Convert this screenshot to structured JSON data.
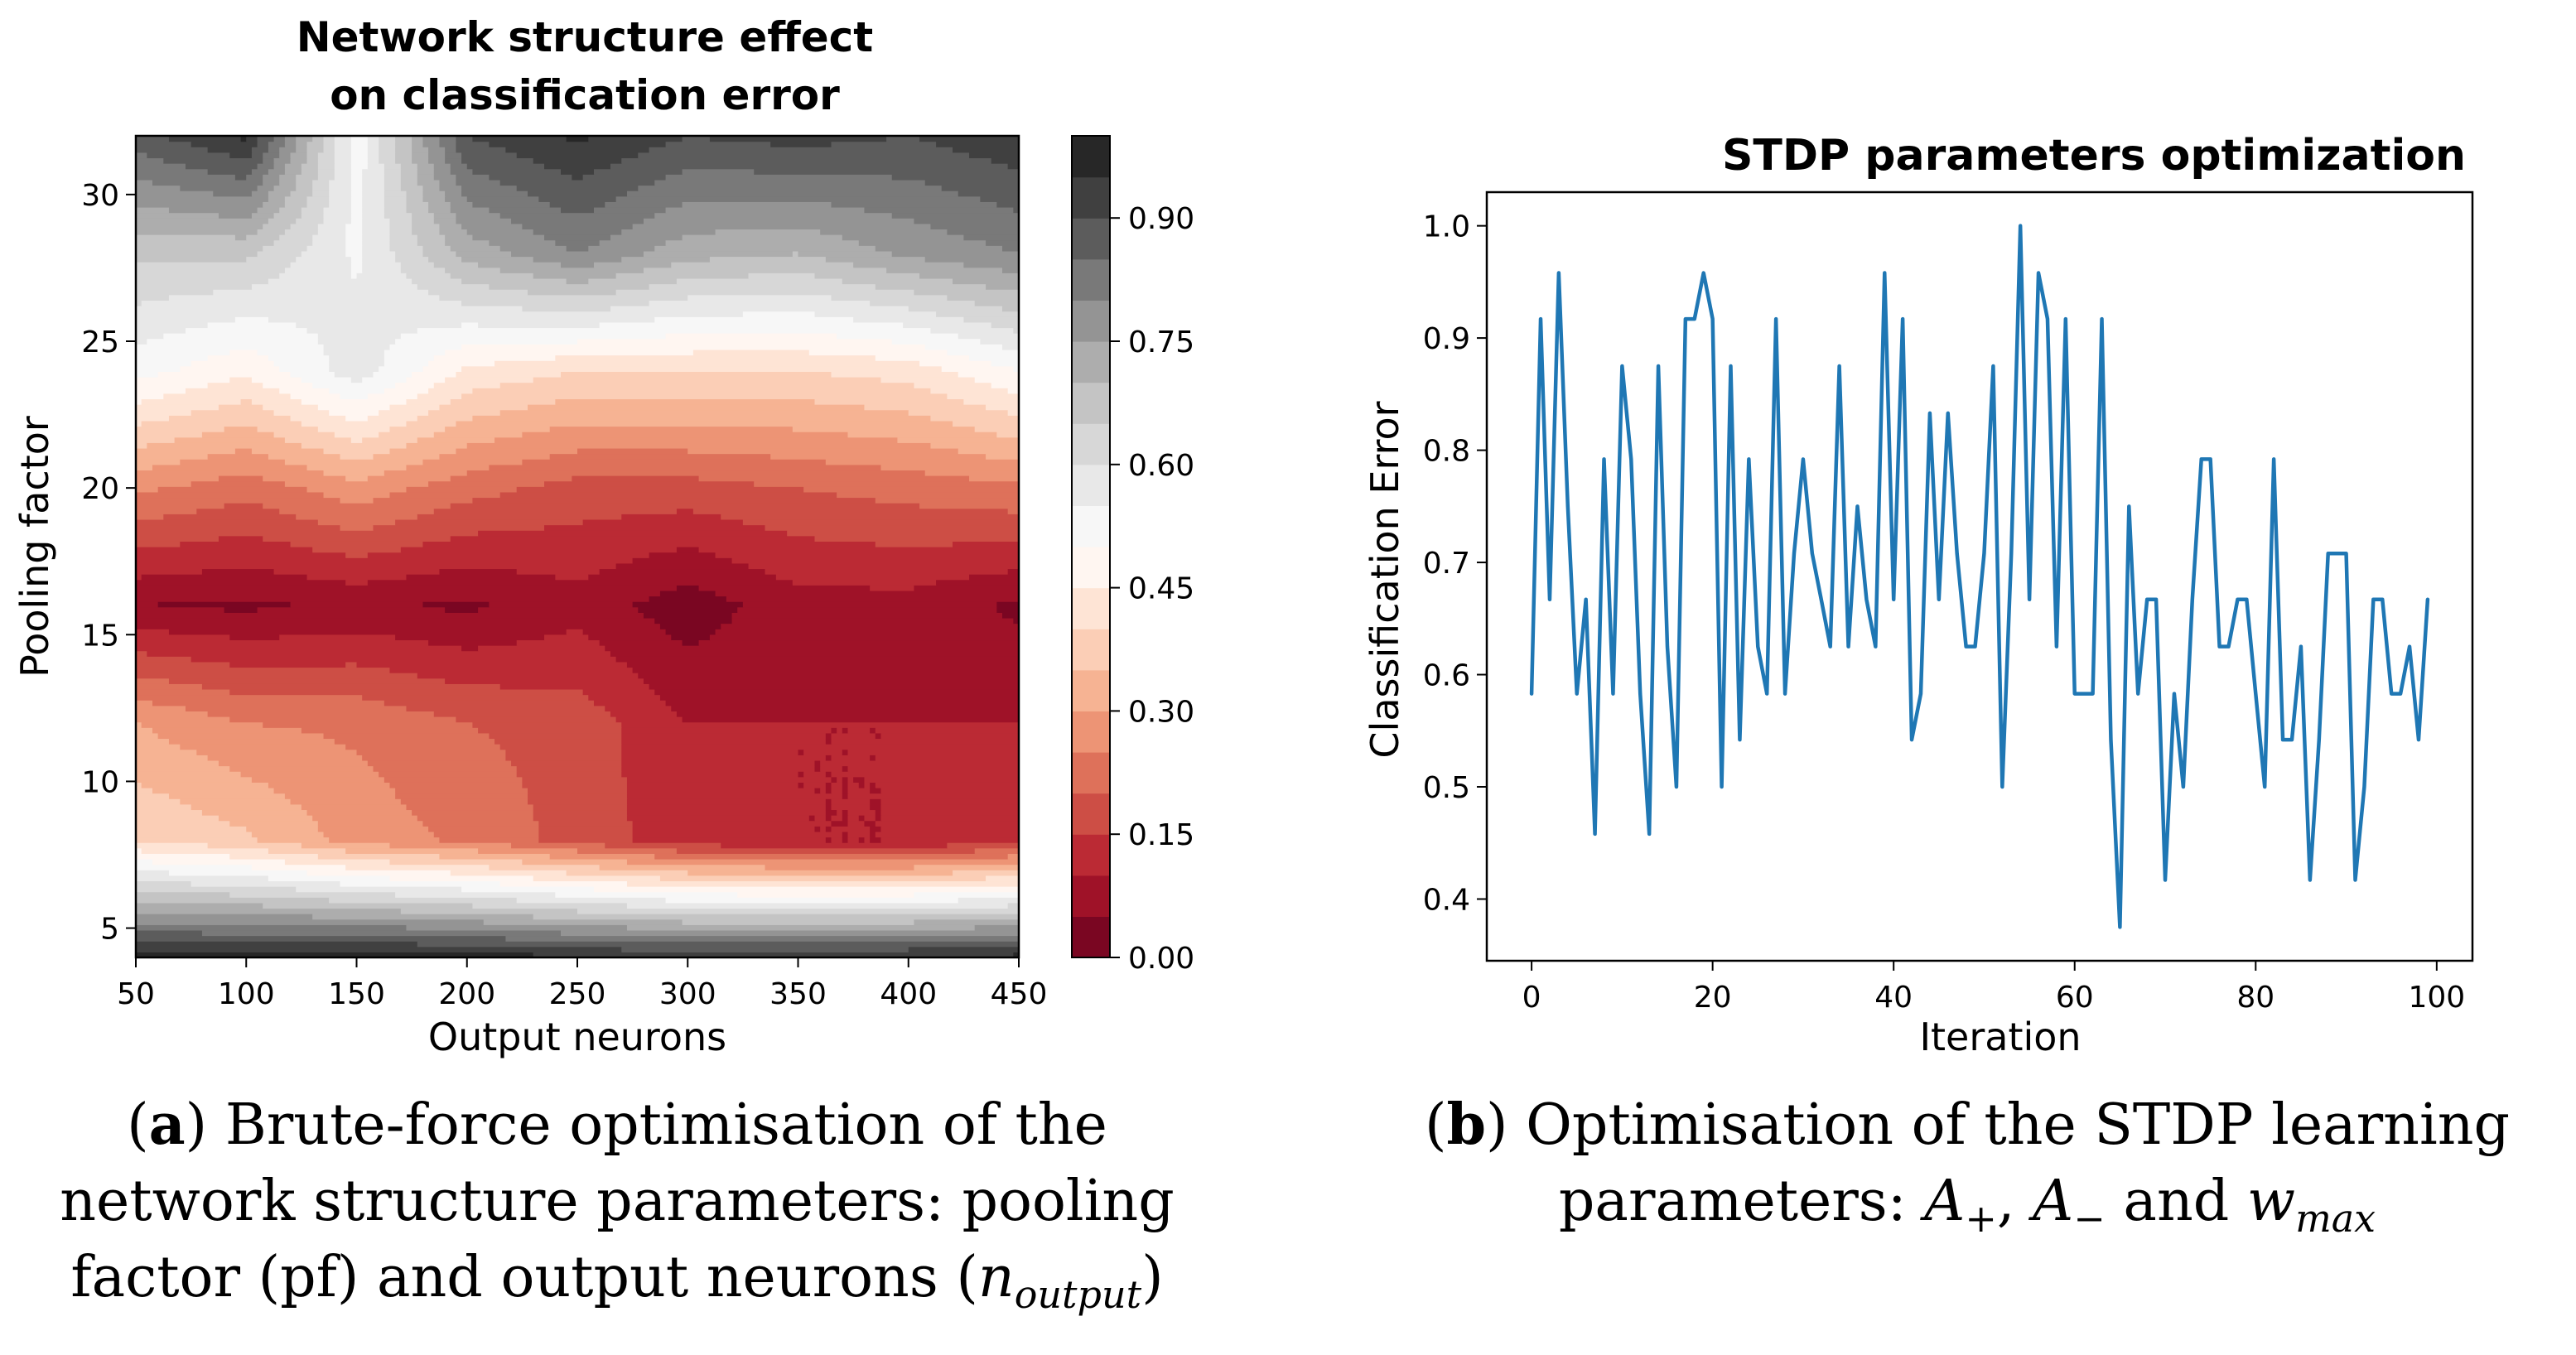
{
  "chart_data": [
    {
      "type": "heatmap",
      "style": "filled-contour",
      "title_line1": "Network structure effect",
      "title_line2": "on classification error",
      "xlabel": "Output neurons",
      "ylabel": "Pooling factor",
      "xlim": [
        50,
        450
      ],
      "ylim": [
        4,
        32
      ],
      "x": [
        50,
        100,
        150,
        200,
        250,
        300,
        350,
        400,
        450
      ],
      "y": [
        4,
        8,
        12,
        16,
        20,
        24,
        28,
        32
      ],
      "z": [
        [
          0.97,
          0.98,
          0.99,
          0.98,
          0.96,
          0.95,
          0.95,
          0.96,
          0.97
        ],
        [
          0.4,
          0.36,
          0.28,
          0.24,
          0.18,
          0.12,
          0.1,
          0.1,
          0.14
        ],
        [
          0.3,
          0.25,
          0.24,
          0.2,
          0.18,
          0.1,
          0.1,
          0.1,
          0.1
        ],
        [
          0.05,
          0.04,
          0.06,
          0.04,
          0.08,
          0.02,
          0.08,
          0.08,
          0.04
        ],
        [
          0.26,
          0.22,
          0.28,
          0.22,
          0.18,
          0.18,
          0.2,
          0.22,
          0.24
        ],
        [
          0.52,
          0.46,
          0.58,
          0.44,
          0.4,
          0.4,
          0.4,
          0.42,
          0.5
        ],
        [
          0.66,
          0.66,
          0.54,
          0.72,
          0.8,
          0.72,
          0.7,
          0.76,
          0.8
        ],
        [
          0.88,
          0.96,
          0.52,
          0.9,
          0.96,
          0.9,
          0.92,
          0.9,
          0.94
        ]
      ],
      "colorbar_levels": [
        0.0,
        0.05,
        0.1,
        0.15,
        0.2,
        0.25,
        0.3,
        0.35,
        0.4,
        0.45,
        0.5,
        0.55,
        0.6,
        0.65,
        0.7,
        0.75,
        0.8,
        0.85,
        0.9,
        0.95,
        1.0
      ],
      "colorbar_ticks": [
        0.0,
        0.15,
        0.3,
        0.45,
        0.6,
        0.75,
        0.9
      ],
      "colormap": "RdGy",
      "colormap_stops": [
        "#67001f",
        "#b2182b",
        "#d6604d",
        "#f4a582",
        "#fddbc7",
        "#ffffff",
        "#e0e0e0",
        "#bababa",
        "#878787",
        "#4d4d4d",
        "#1a1a1a"
      ],
      "caption_label": "a",
      "caption_line1": "Brute-force optimisation of the",
      "caption_line2": "network structure parameters: pooling",
      "caption_line3_text": "factor (pf) and output neurons (",
      "caption_line3_var": "n",
      "caption_line3_sub": "output",
      "caption_line3_end": ")"
    },
    {
      "type": "line",
      "title": "STDP parameters optimization",
      "xlabel": "Iteration",
      "ylabel": "Classification Error",
      "xlim": [
        -4.95,
        103.95
      ],
      "ylim": [
        0.345,
        1.03
      ],
      "xticks": [
        0,
        20,
        40,
        60,
        80,
        100
      ],
      "yticks": [
        0.4,
        0.5,
        0.6,
        0.7,
        0.8,
        0.9,
        1.0
      ],
      "line_color": "#1f77b4",
      "series": [
        {
          "name": "Classification Error",
          "x": [
            0,
            1,
            2,
            3,
            4,
            5,
            6,
            7,
            8,
            9,
            10,
            11,
            12,
            13,
            14,
            15,
            16,
            17,
            18,
            19,
            20,
            21,
            22,
            23,
            24,
            25,
            26,
            27,
            28,
            29,
            30,
            31,
            32,
            33,
            34,
            35,
            36,
            37,
            38,
            39,
            40,
            41,
            42,
            43,
            44,
            45,
            46,
            47,
            48,
            49,
            50,
            51,
            52,
            53,
            54,
            55,
            56,
            57,
            58,
            59,
            60,
            61,
            62,
            63,
            64,
            65,
            66,
            67,
            68,
            69,
            70,
            71,
            72,
            73,
            74,
            75,
            76,
            77,
            78,
            79,
            80,
            81,
            82,
            83,
            84,
            85,
            86,
            87,
            88,
            89,
            90,
            91,
            92,
            93,
            94,
            95,
            96,
            97,
            98,
            99
          ],
          "values": [
            0.583,
            0.917,
            0.667,
            0.958,
            0.75,
            0.583,
            0.667,
            0.458,
            0.792,
            0.583,
            0.875,
            0.792,
            0.583,
            0.458,
            0.875,
            0.625,
            0.5,
            0.917,
            0.917,
            0.958,
            0.917,
            0.5,
            0.875,
            0.542,
            0.792,
            0.625,
            0.583,
            0.917,
            0.583,
            0.708,
            0.792,
            0.708,
            0.667,
            0.625,
            0.875,
            0.625,
            0.75,
            0.667,
            0.625,
            0.958,
            0.667,
            0.917,
            0.542,
            0.583,
            0.833,
            0.667,
            0.833,
            0.708,
            0.625,
            0.625,
            0.708,
            0.875,
            0.5,
            0.708,
            1.0,
            0.667,
            0.958,
            0.917,
            0.625,
            0.917,
            0.583,
            0.583,
            0.583,
            0.917,
            0.542,
            0.375,
            0.75,
            0.583,
            0.667,
            0.667,
            0.417,
            0.583,
            0.5,
            0.667,
            0.792,
            0.792,
            0.625,
            0.625,
            0.667,
            0.667,
            0.583,
            0.5,
            0.792,
            0.542,
            0.542,
            0.625,
            0.417,
            0.542,
            0.708,
            0.708,
            0.708,
            0.417,
            0.5,
            0.667,
            0.667,
            0.583,
            0.583,
            0.625,
            0.542,
            0.667
          ]
        }
      ],
      "caption_label": "b",
      "caption_line1": "Optimisation of the STDP learning",
      "caption_line2_text": "parameters: ",
      "caption_var_a": "A",
      "caption_sub_plus": "+",
      "caption_sep1": ", ",
      "caption_sub_minus": "−",
      "caption_and": " and ",
      "caption_var_w": "w",
      "caption_sub_max": "max"
    }
  ]
}
